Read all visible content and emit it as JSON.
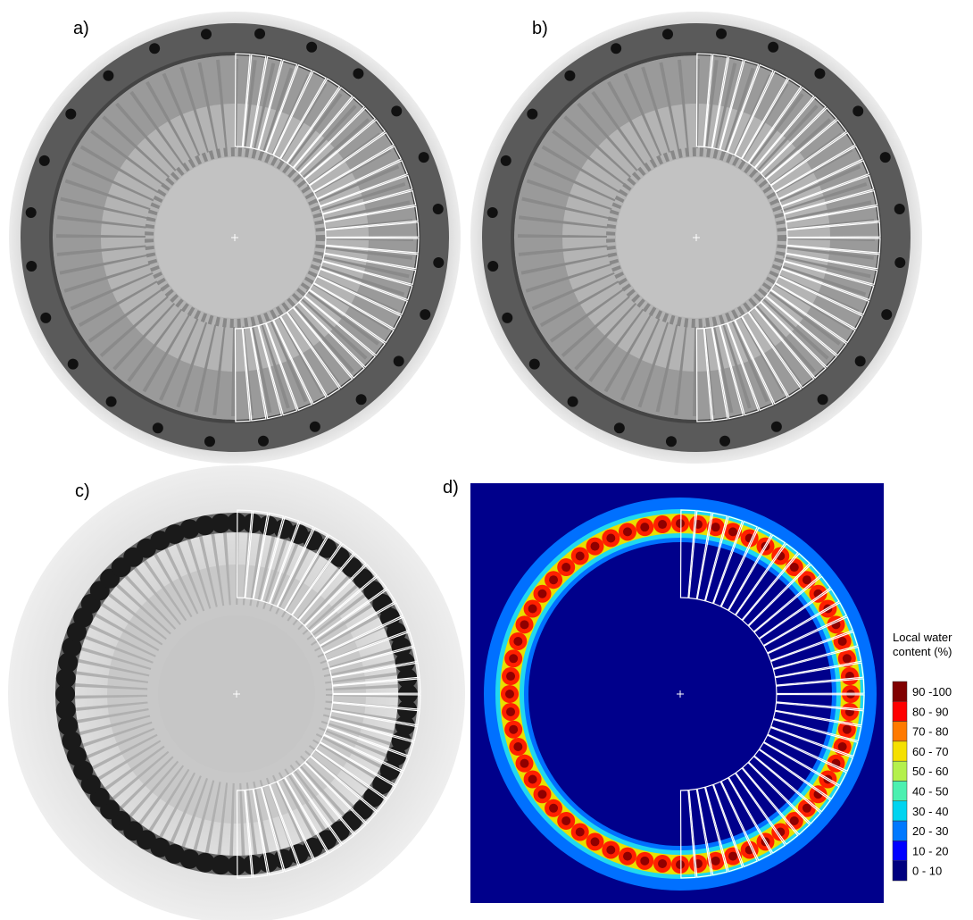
{
  "panels": [
    {
      "label": "a)"
    },
    {
      "label": "b)"
    },
    {
      "label": "c)"
    },
    {
      "label": "d)"
    }
  ],
  "legend": {
    "title_lines": [
      "Local water",
      "content (%)"
    ],
    "items": [
      {
        "label": "90 -100",
        "color": "#800000"
      },
      {
        "label": "80 - 90",
        "color": "#ff0000"
      },
      {
        "label": "70 - 80",
        "color": "#ff7a00"
      },
      {
        "label": "60 - 70",
        "color": "#f5e000"
      },
      {
        "label": "50 - 60",
        "color": "#b4f04c"
      },
      {
        "label": "40 - 50",
        "color": "#4cf0b0"
      },
      {
        "label": "30 - 40",
        "color": "#00d4f0"
      },
      {
        "label": "20 - 30",
        "color": "#0078ff"
      },
      {
        "label": "10 - 20",
        "color": "#0000ff"
      },
      {
        "label": "0 - 10",
        "color": "#00007f"
      }
    ]
  }
}
